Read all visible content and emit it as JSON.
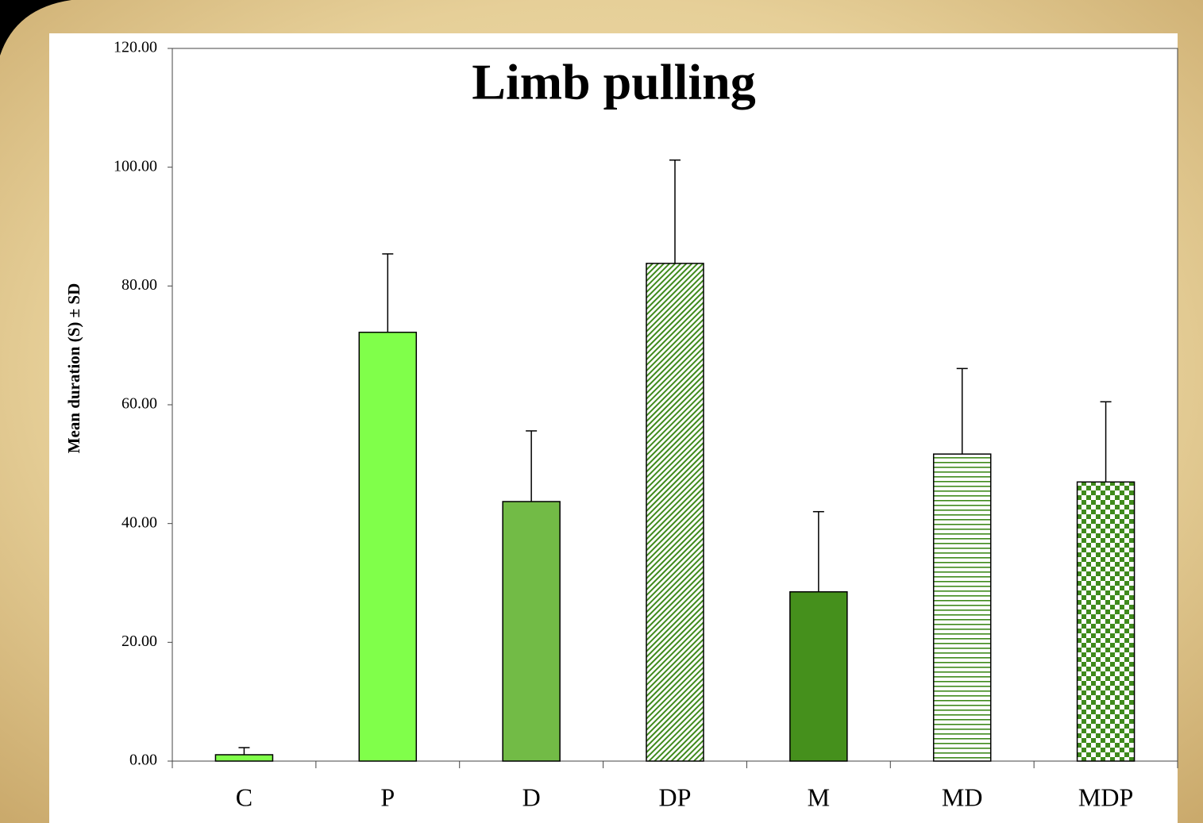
{
  "chart_data": {
    "type": "bar",
    "title": "Limb pulling",
    "y_label": "Mean duration (S) ± SD",
    "categories": [
      "C",
      "P",
      "D",
      "DP",
      "M",
      "MD",
      "MDP"
    ],
    "values": [
      1.07,
      72.2,
      43.7,
      83.8,
      28.5,
      51.7,
      47.0
    ],
    "errors": [
      1.2,
      13.2,
      11.9,
      17.4,
      13.5,
      14.4,
      13.5
    ],
    "colors": [
      "#80ff4a",
      "#80ff4a",
      "#72bb46",
      "#3f8a1c",
      "#45901c",
      "#3f8a1c",
      "#3f8a1c"
    ],
    "patterns": [
      "solid",
      "solid",
      "solid",
      "diagonal",
      "solid",
      "horizontal",
      "checker"
    ],
    "ylim": [
      0,
      120
    ],
    "yticks": [
      {
        "value": 0,
        "label": "0.00"
      },
      {
        "value": 20,
        "label": "20.00"
      },
      {
        "value": 40,
        "label": "40.00"
      },
      {
        "value": 60,
        "label": "60.00"
      },
      {
        "value": 80,
        "label": "80.00"
      },
      {
        "value": 100,
        "label": "100.00"
      },
      {
        "value": 120,
        "label": "120.00"
      }
    ]
  }
}
